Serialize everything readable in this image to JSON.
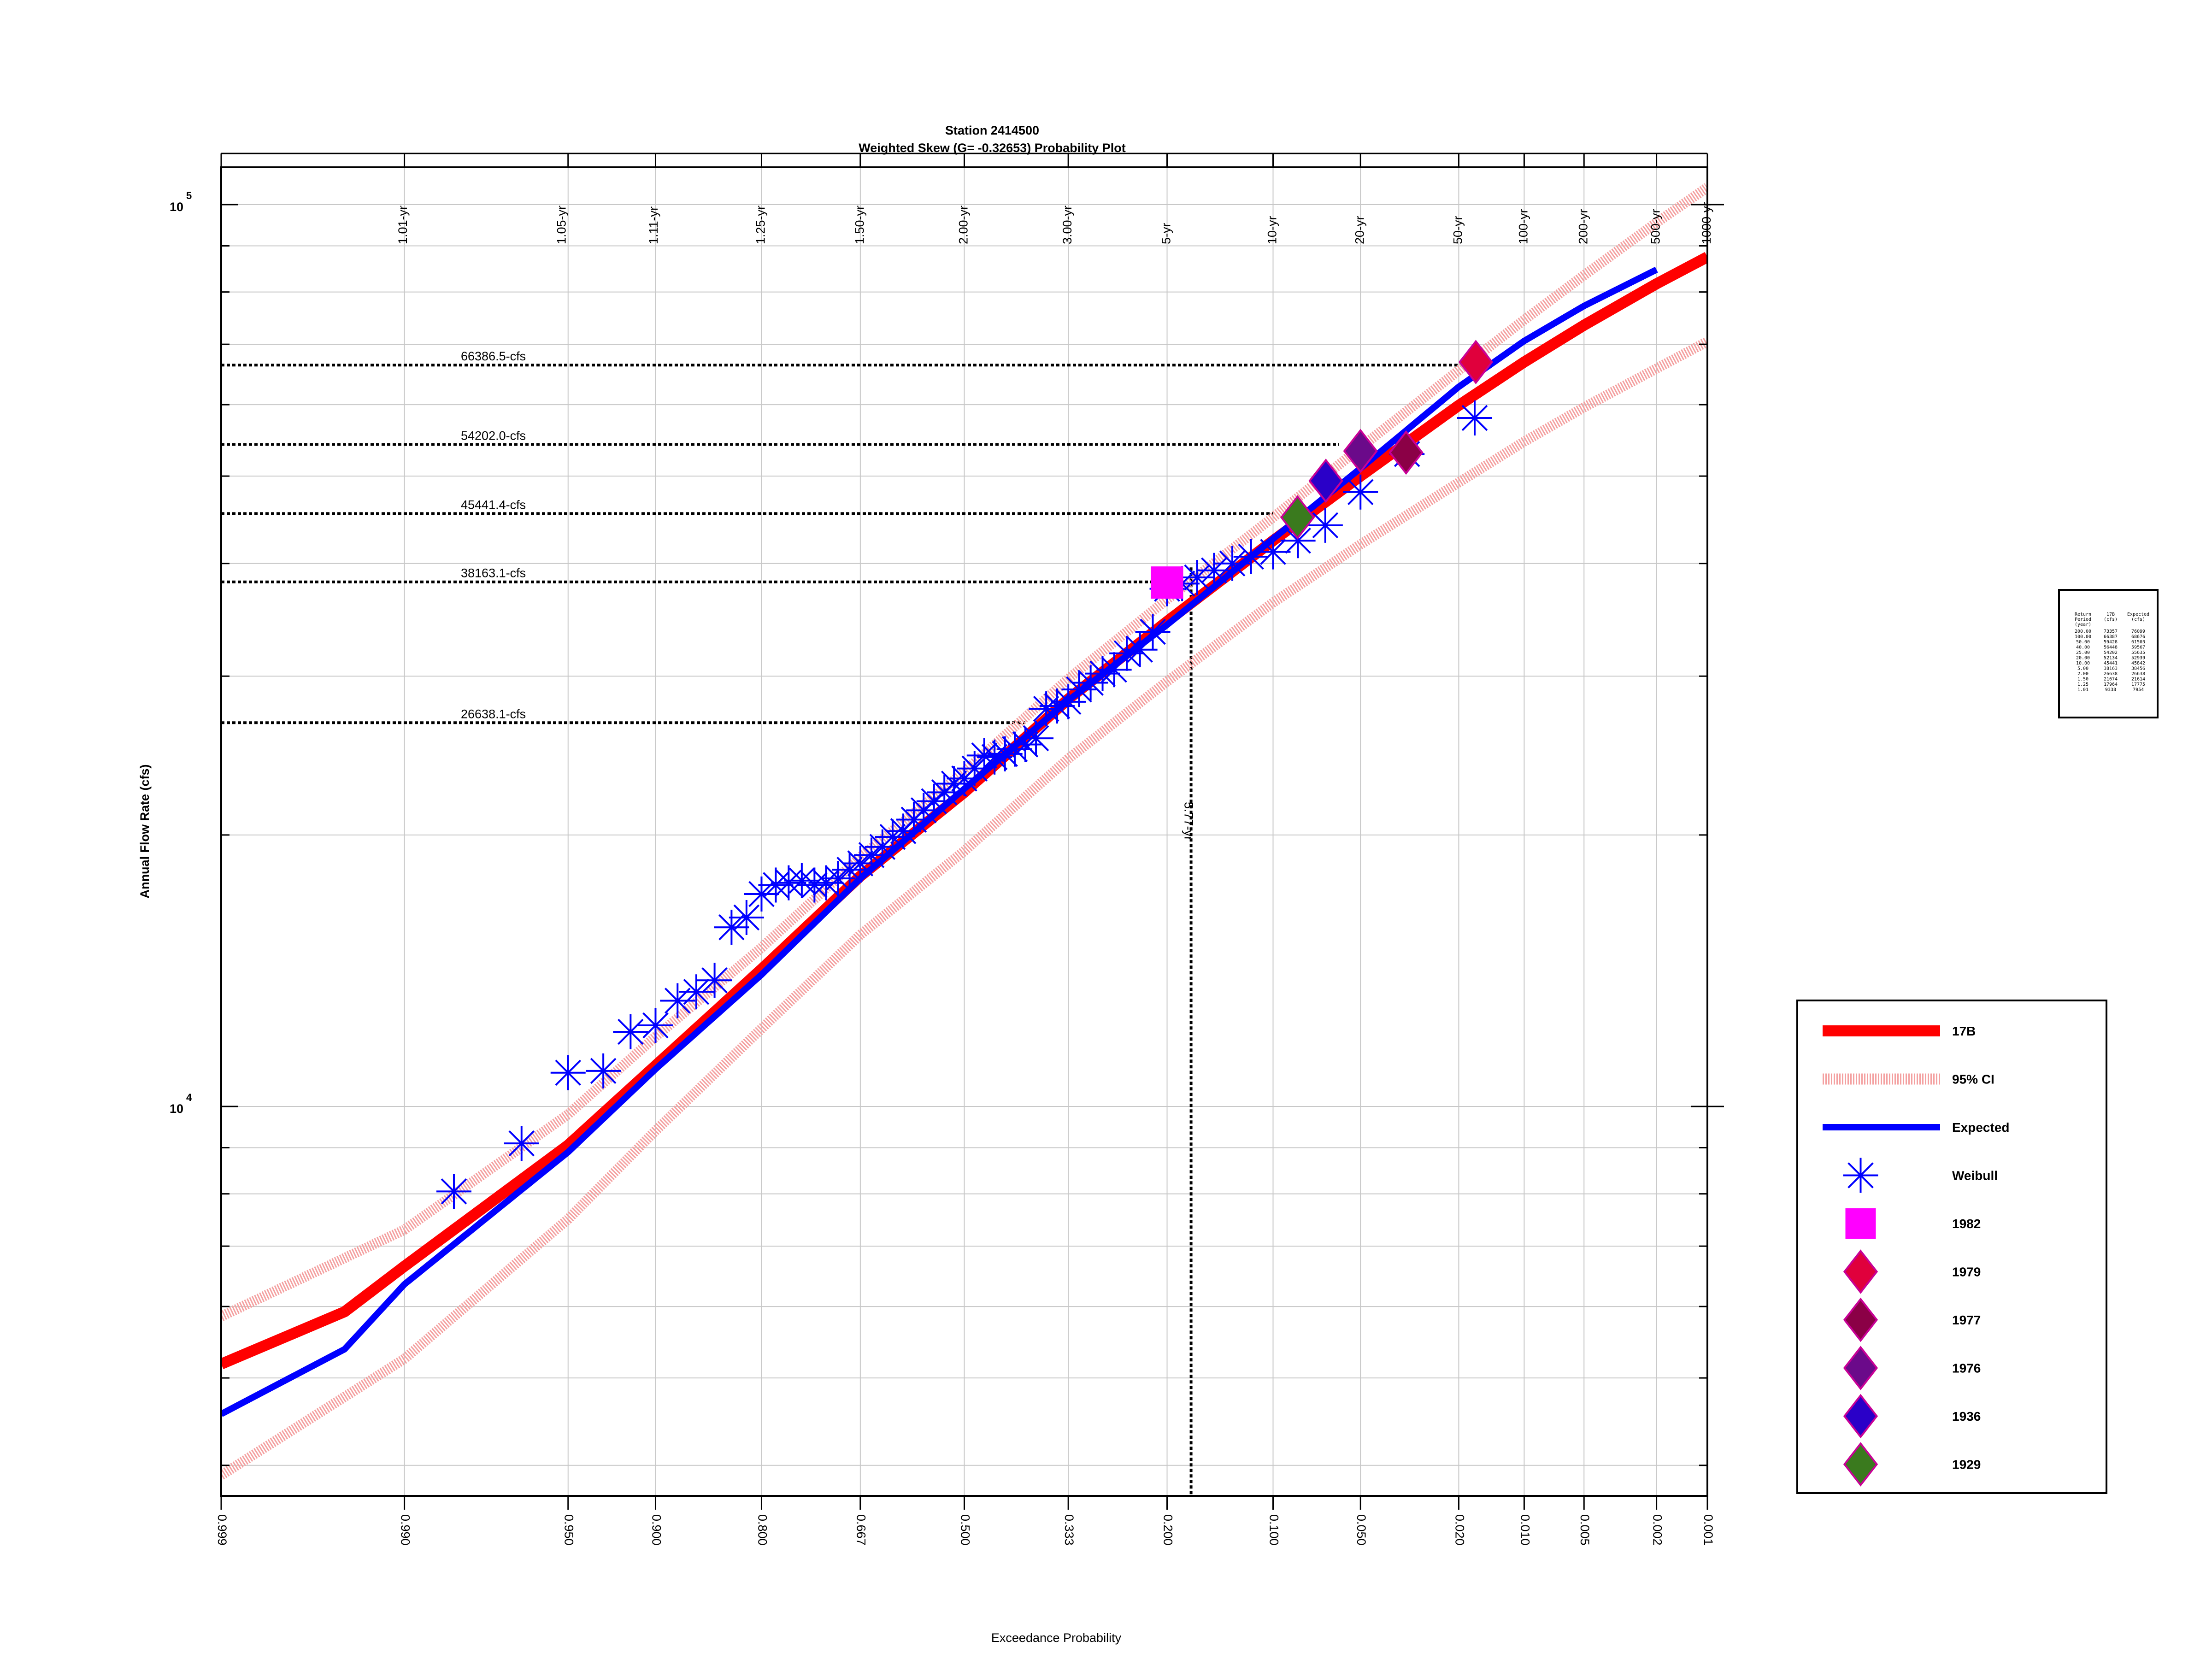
{
  "chart_data": {
    "type": "scatter",
    "title": "Station 2414500",
    "subtitle": "Weighted Skew (G= -0.32653) Probability Plot",
    "xlabel": "Exceedance Probability",
    "ylabel": "Annual Flow Rate (cfs)",
    "x_scale": "normal-probability (reversed)",
    "y_scale": "log",
    "xlim": [
      0.999,
      0.001
    ],
    "ylim": [
      3700,
      110000
    ],
    "grid": true,
    "legend_position": "right",
    "x_ticks": [
      {
        "p": 0.999,
        "label": "0.999"
      },
      {
        "p": 0.99,
        "label": "0.990"
      },
      {
        "p": 0.95,
        "label": "0.950"
      },
      {
        "p": 0.9,
        "label": "0.900"
      },
      {
        "p": 0.8,
        "label": "0.800"
      },
      {
        "p": 0.667,
        "label": "0.667"
      },
      {
        "p": 0.5,
        "label": "0.500"
      },
      {
        "p": 0.333,
        "label": "0.333"
      },
      {
        "p": 0.2,
        "label": "0.200"
      },
      {
        "p": 0.1,
        "label": "0.100"
      },
      {
        "p": 0.05,
        "label": "0.050"
      },
      {
        "p": 0.02,
        "label": "0.020"
      },
      {
        "p": 0.01,
        "label": "0.010"
      },
      {
        "p": 0.005,
        "label": "0.005"
      },
      {
        "p": 0.002,
        "label": "0.002"
      },
      {
        "p": 0.001,
        "label": "0.001"
      }
    ],
    "return_period_ticks": [
      {
        "p": 0.990099,
        "label": "1.01-yr"
      },
      {
        "p": 0.952381,
        "label": "1.05-yr"
      },
      {
        "p": 0.9009,
        "label": "1.11-yr"
      },
      {
        "p": 0.8,
        "label": "1.25-yr"
      },
      {
        "p": 0.6667,
        "label": "1.50-yr"
      },
      {
        "p": 0.5,
        "label": "2.00-yr"
      },
      {
        "p": 0.3333,
        "label": "3.00-yr"
      },
      {
        "p": 0.2,
        "label": "5-yr"
      },
      {
        "p": 0.1,
        "label": "10-yr"
      },
      {
        "p": 0.05,
        "label": "20-yr"
      },
      {
        "p": 0.02,
        "label": "50-yr"
      },
      {
        "p": 0.01,
        "label": "100-yr"
      },
      {
        "p": 0.005,
        "label": "200-yr"
      },
      {
        "p": 0.002,
        "label": "500-yr"
      },
      {
        "p": 0.001,
        "label": "1000-yr"
      }
    ],
    "y_major_ticks": [
      {
        "value": 10000,
        "base": "10",
        "exp": "4"
      },
      {
        "value": 100000,
        "base": "10",
        "exp": "5"
      }
    ],
    "y_minor_ticks": [
      4000,
      5000,
      6000,
      7000,
      8000,
      9000,
      20000,
      30000,
      40000,
      50000,
      60000,
      70000,
      80000,
      90000
    ],
    "reference_lines": [
      {
        "value": 66386.5,
        "label": "66386.5-cfs",
        "p_end": 0.0168
      },
      {
        "value": 54202.0,
        "label": "54202.0-cfs",
        "p_end": 0.06
      },
      {
        "value": 45441.4,
        "label": "45441.4-cfs",
        "p_end": 0.1
      },
      {
        "value": 38163.1,
        "label": "38163.1-cfs",
        "p_end": 0.2
      },
      {
        "value": 26638.1,
        "label": "26638.1-cfs",
        "p_end": 0.4
      }
    ],
    "vertical_reference": {
      "p": 0.1733,
      "label": "5.77-yr",
      "value": 39600
    },
    "series": [
      {
        "name": "17B",
        "type": "line",
        "color": "#ff0000",
        "points": [
          [
            0.999,
            5180
          ],
          [
            0.995,
            5920
          ],
          [
            0.99,
            6650
          ],
          [
            0.95,
            9060
          ],
          [
            0.9,
            11100
          ],
          [
            0.8,
            14200
          ],
          [
            0.667,
            18000
          ],
          [
            0.5,
            22300
          ],
          [
            0.333,
            28300
          ],
          [
            0.2,
            34500
          ],
          [
            0.1,
            42400
          ],
          [
            0.05,
            50000
          ],
          [
            0.02,
            59900
          ],
          [
            0.01,
            66900
          ],
          [
            0.005,
            73500
          ],
          [
            0.002,
            81700
          ],
          [
            0.001,
            87500
          ]
        ]
      },
      {
        "name": "95% CI",
        "type": "band",
        "color": "#f4a0a0",
        "upper": [
          [
            0.999,
            5850
          ],
          [
            0.99,
            7300
          ],
          [
            0.95,
            9800
          ],
          [
            0.9,
            11950
          ],
          [
            0.8,
            15000
          ],
          [
            0.667,
            18900
          ],
          [
            0.5,
            23500
          ],
          [
            0.333,
            29800
          ],
          [
            0.2,
            36500
          ],
          [
            0.1,
            45000
          ],
          [
            0.05,
            53800
          ],
          [
            0.02,
            65500
          ],
          [
            0.01,
            74500
          ],
          [
            0.005,
            83500
          ],
          [
            0.002,
            95500
          ],
          [
            0.001,
            104500
          ]
        ],
        "lower": [
          [
            0.999,
            3900
          ],
          [
            0.99,
            5250
          ],
          [
            0.95,
            7500
          ],
          [
            0.9,
            9400
          ],
          [
            0.8,
            12200
          ],
          [
            0.667,
            15500
          ],
          [
            0.5,
            19200
          ],
          [
            0.333,
            24300
          ],
          [
            0.2,
            29600
          ],
          [
            0.1,
            36200
          ],
          [
            0.05,
            42000
          ],
          [
            0.02,
            49200
          ],
          [
            0.01,
            54600
          ],
          [
            0.005,
            59600
          ],
          [
            0.002,
            65800
          ],
          [
            0.001,
            70500
          ]
        ]
      },
      {
        "name": "Expected",
        "type": "line",
        "color": "#0000ff",
        "points": [
          [
            0.999,
            4560
          ],
          [
            0.995,
            5380
          ],
          [
            0.99,
            6350
          ],
          [
            0.95,
            8900
          ],
          [
            0.9,
            11000
          ],
          [
            0.8,
            14000
          ],
          [
            0.667,
            17900
          ],
          [
            0.5,
            22500
          ],
          [
            0.333,
            28200
          ],
          [
            0.2,
            34200
          ],
          [
            0.1,
            42600
          ],
          [
            0.05,
            51000
          ],
          [
            0.02,
            62800
          ],
          [
            0.01,
            70600
          ],
          [
            0.005,
            77200
          ],
          [
            0.002,
            84700
          ]
        ]
      },
      {
        "name": "Weibull",
        "type": "scatter",
        "color": "#0000ff",
        "marker": "asterisk",
        "points": [
          [
            0.983,
            8050
          ],
          [
            0.967,
            9100
          ],
          [
            0.95,
            10900
          ],
          [
            0.933,
            10950
          ],
          [
            0.917,
            12100
          ],
          [
            0.9,
            12300
          ],
          [
            0.883,
            13100
          ],
          [
            0.867,
            13400
          ],
          [
            0.85,
            13800
          ],
          [
            0.833,
            15800
          ],
          [
            0.817,
            16200
          ],
          [
            0.8,
            17200
          ],
          [
            0.783,
            17600
          ],
          [
            0.767,
            17700
          ],
          [
            0.75,
            17800
          ],
          [
            0.733,
            17600
          ],
          [
            0.717,
            17700
          ],
          [
            0.7,
            17900
          ],
          [
            0.683,
            18300
          ],
          [
            0.667,
            18600
          ],
          [
            0.65,
            19000
          ],
          [
            0.633,
            19400
          ],
          [
            0.617,
            19900
          ],
          [
            0.6,
            20200
          ],
          [
            0.583,
            20800
          ],
          [
            0.567,
            21300
          ],
          [
            0.55,
            21800
          ],
          [
            0.533,
            22300
          ],
          [
            0.517,
            22800
          ],
          [
            0.5,
            23100
          ],
          [
            0.483,
            23700
          ],
          [
            0.467,
            24500
          ],
          [
            0.45,
            24400
          ],
          [
            0.433,
            24600
          ],
          [
            0.417,
            24900
          ],
          [
            0.4,
            25200
          ],
          [
            0.383,
            25600
          ],
          [
            0.367,
            27600
          ],
          [
            0.35,
            27800
          ],
          [
            0.333,
            28100
          ],
          [
            0.317,
            29000
          ],
          [
            0.3,
            29500
          ],
          [
            0.283,
            30200
          ],
          [
            0.267,
            30500
          ],
          [
            0.25,
            31800
          ],
          [
            0.233,
            32100
          ],
          [
            0.217,
            33600
          ],
          [
            0.2,
            37500
          ],
          [
            0.183,
            38000
          ],
          [
            0.167,
            38600
          ],
          [
            0.15,
            39300
          ],
          [
            0.133,
            40000
          ],
          [
            0.117,
            40700
          ],
          [
            0.1,
            41200
          ],
          [
            0.083,
            42400
          ],
          [
            0.067,
            44100
          ],
          [
            0.05,
            48000
          ],
          [
            0.033,
            52900
          ],
          [
            0.017,
            58000
          ]
        ]
      },
      {
        "name": "1982",
        "type": "scatter",
        "color": "#ff00ff",
        "marker": "square",
        "points": [
          [
            0.2,
            38100
          ]
        ]
      },
      {
        "name": "1979",
        "type": "scatter",
        "color": "#e0003c",
        "marker": "diamond",
        "points": [
          [
            0.0168,
            66900
          ]
        ]
      },
      {
        "name": "1977",
        "type": "scatter",
        "color": "#8b0046",
        "marker": "diamond",
        "points": [
          [
            0.0333,
            53100
          ]
        ]
      },
      {
        "name": "1976",
        "type": "scatter",
        "color": "#6b0a8a",
        "marker": "diamond",
        "points": [
          [
            0.05,
            53300
          ]
        ]
      },
      {
        "name": "1936",
        "type": "scatter",
        "color": "#2a00c8",
        "marker": "diamond",
        "points": [
          [
            0.0667,
            49400
          ]
        ]
      },
      {
        "name": "1929",
        "type": "scatter",
        "color": "#3a7a1e",
        "marker": "diamond",
        "points": [
          [
            0.0833,
            45000
          ]
        ]
      }
    ],
    "inset_table": {
      "headers": [
        [
          "Return",
          "Period",
          "(year)"
        ],
        [
          "17B",
          "(cfs)"
        ],
        [
          "Expected",
          "(cfs)"
        ]
      ],
      "rows": [
        [
          "200.00",
          "73357",
          "76099"
        ],
        [
          "100.00",
          "66387",
          "68676"
        ],
        [
          "50.00",
          "59428",
          "61503"
        ],
        [
          "40.00",
          "56448",
          "59567"
        ],
        [
          "25.00",
          "54202",
          "55635"
        ],
        [
          "20.00",
          "52134",
          "52939"
        ],
        [
          "10.00",
          "45441",
          "45842"
        ],
        [
          "5.00",
          "38163",
          "38456"
        ],
        [
          "2.00",
          "26638",
          "26638"
        ],
        [
          "1.50",
          "21674",
          "21614"
        ],
        [
          "1.25",
          "17964",
          "17775"
        ],
        [
          "1.01",
          "9338",
          "7954"
        ]
      ]
    }
  }
}
